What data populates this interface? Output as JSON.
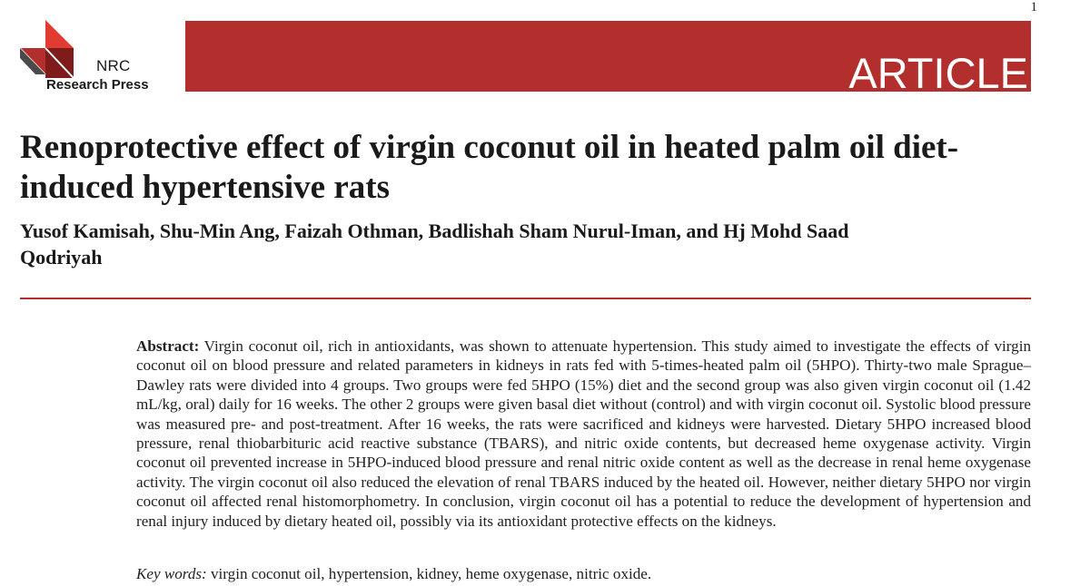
{
  "page": {
    "number": "1"
  },
  "publisher": {
    "logo_icon": "nrc-triangle-logo",
    "name_line1": "NRC",
    "name_line2": "Research Press",
    "colors": {
      "red": "#b22f2d",
      "dark_red": "#7d1c1b",
      "bright_red": "#e13b32",
      "gray": "#4a4a4a"
    }
  },
  "banner": {
    "label": "ARTICLE",
    "color": "#b22f2d"
  },
  "article": {
    "title": "Renoprotective effect of virgin coconut oil in heated palm oil diet-induced hypertensive rats",
    "authors": "Yusof Kamisah, Shu-Min Ang, Faizah Othman, Badlishah Sham Nurul-Iman, and Hj Mohd Saad Qodriyah",
    "abstract_label": "Abstract:",
    "abstract_text": "Virgin coconut oil, rich in antioxidants, was shown to attenuate hypertension. This study aimed to investigate the effects of virgin coconut oil on blood pressure and related parameters in kidneys in rats fed with 5-times-heated palm oil (5HPO). Thirty-two male Sprague–Dawley rats were divided into 4 groups. Two groups were fed 5HPO (15%) diet and the second group was also given virgin coconut oil (1.42 mL/kg, oral) daily for 16 weeks. The other 2 groups were given basal diet without (control) and with virgin coconut oil. Systolic blood pressure was measured pre- and post-treatment. After 16 weeks, the rats were sacrificed and kidneys were harvested. Dietary 5HPO increased blood pressure, renal thiobarbituric acid reactive substance (TBARS), and nitric oxide contents, but decreased heme oxygenase activity. Virgin coconut oil prevented increase in 5HPO-induced blood pressure and renal nitric oxide content as well as the decrease in renal heme oxygenase activity. The virgin coconut oil also reduced the elevation of renal TBARS induced by the heated oil. However, neither dietary 5HPO nor virgin coconut oil affected renal histomorphometry. In conclusion, virgin coconut oil has a potential to reduce the development of hypertension and renal injury induced by dietary heated oil, possibly via its antioxidant protective effects on the kidneys.",
    "keywords_label": "Key words:",
    "keywords_text": "virgin coconut oil, hypertension, kidney, heme oxygenase, nitric oxide."
  }
}
